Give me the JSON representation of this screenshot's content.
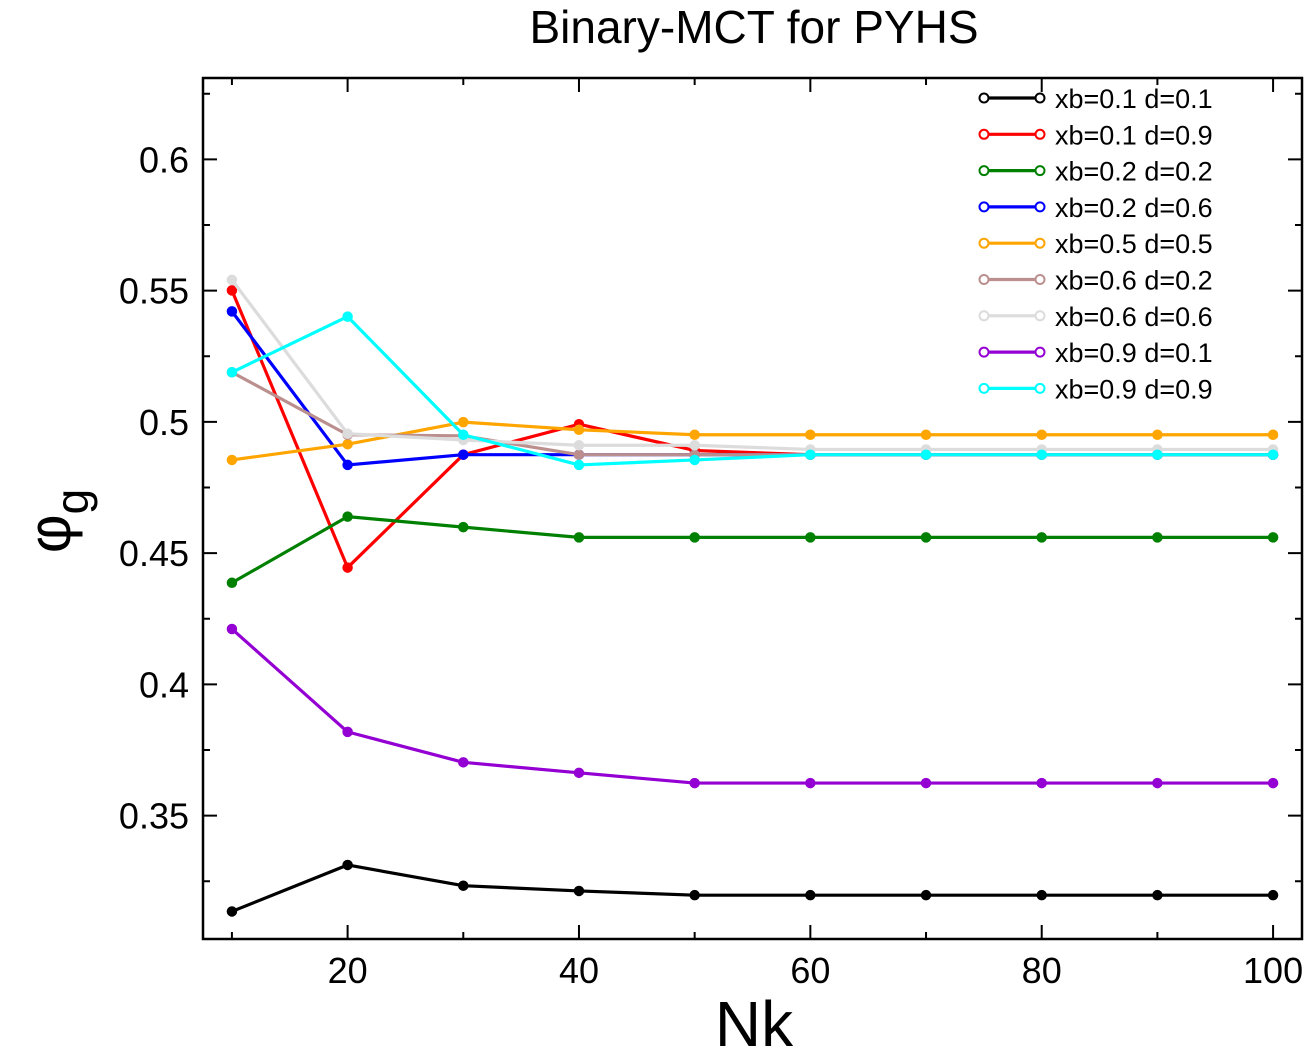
{
  "chart_data": {
    "type": "line",
    "title": "Binary-MCT for PYHS",
    "xlabel": "Nk",
    "ylabel_symbol": "φ",
    "ylabel_subscript": "g",
    "xlim": [
      7.5,
      102.5
    ],
    "ylim": [
      0.303,
      0.631
    ],
    "xticks": [
      20,
      40,
      60,
      80,
      100
    ],
    "xtick_labels": [
      "20",
      "40",
      "60",
      "80",
      "100"
    ],
    "yticks": [
      0.35,
      0.4,
      0.45,
      0.5,
      0.55,
      0.6
    ],
    "ytick_labels": [
      "0.35",
      "0.4",
      "0.45",
      "0.5",
      "0.55",
      "0.6"
    ],
    "legend_position": "top-right",
    "x": [
      10,
      20,
      30,
      40,
      50,
      60,
      70,
      80,
      90,
      100
    ],
    "series": [
      {
        "name": "xb=0.1 d=0.1",
        "color": "#000000",
        "values": [
          0.3135,
          0.3312,
          0.3233,
          0.3213,
          0.3197,
          0.3197,
          0.3197,
          0.3197,
          0.3197,
          0.3197
        ]
      },
      {
        "name": "xb=0.1 d=0.9",
        "color": "#ff0000",
        "values": [
          0.5501,
          0.4445,
          0.4875,
          0.4991,
          0.4891,
          0.4875,
          0.4875,
          0.4875,
          0.4875,
          0.4875
        ]
      },
      {
        "name": "xb=0.2 d=0.2",
        "color": "#008000",
        "values": [
          0.4387,
          0.4639,
          0.4599,
          0.456,
          0.456,
          0.456,
          0.456,
          0.456,
          0.456,
          0.456
        ]
      },
      {
        "name": "xb=0.2 d=0.6",
        "color": "#0000ff",
        "values": [
          0.5421,
          0.4836,
          0.4875,
          0.4875,
          0.4875,
          0.4875,
          0.4875,
          0.4875,
          0.4875,
          0.4875
        ]
      },
      {
        "name": "xb=0.5 d=0.5",
        "color": "#ffa500",
        "values": [
          0.4855,
          0.4915,
          0.4999,
          0.497,
          0.4951,
          0.4951,
          0.4951,
          0.4951,
          0.4951,
          0.4951
        ]
      },
      {
        "name": "xb=0.6 d=0.2",
        "color": "#bc8f8f",
        "values": [
          0.5189,
          0.4951,
          0.4947,
          0.4875,
          0.4875,
          0.4875,
          0.4875,
          0.4875,
          0.4875,
          0.4875
        ]
      },
      {
        "name": "xb=0.6 d=0.6",
        "color": "#dcdcdc",
        "values": [
          0.5541,
          0.4955,
          0.4931,
          0.4911,
          0.4911,
          0.4895,
          0.4895,
          0.4895,
          0.4895,
          0.4895
        ]
      },
      {
        "name": "xb=0.9 d=0.1",
        "color": "#9400d3",
        "values": [
          0.4211,
          0.3819,
          0.3703,
          0.3663,
          0.3624,
          0.3624,
          0.3624,
          0.3624,
          0.3624,
          0.3624
        ]
      },
      {
        "name": "xb=0.9 d=0.9",
        "color": "#00ffff",
        "values": [
          0.5189,
          0.5401,
          0.4951,
          0.4836,
          0.4855,
          0.4875,
          0.4875,
          0.4875,
          0.4875,
          0.4875
        ]
      }
    ]
  }
}
